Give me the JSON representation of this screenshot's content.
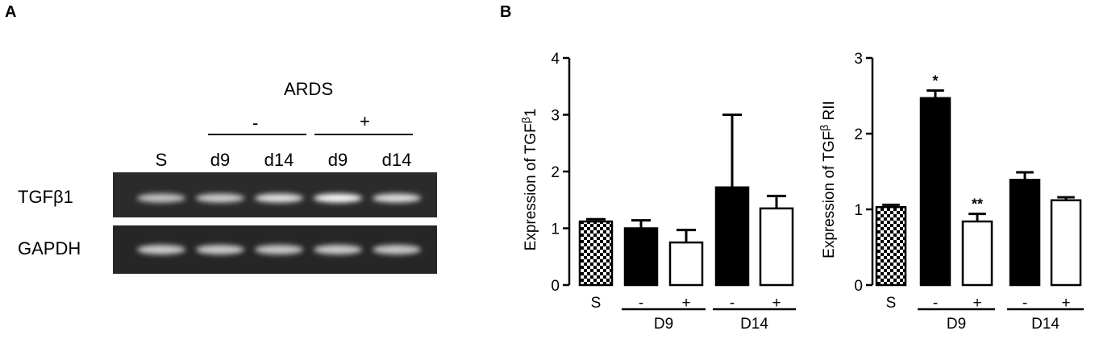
{
  "panel_a": {
    "letter": "A",
    "group_title": "ARDS",
    "minus_label": "-",
    "plus_label": "+",
    "lanes": [
      "S",
      "d9",
      "d14",
      "d9",
      "d14"
    ],
    "rows": [
      "TGFβ1",
      "GAPDH"
    ],
    "band_intensity": {
      "TGFβ1": [
        0.55,
        0.62,
        0.78,
        0.95,
        0.75
      ],
      "GAPDH": [
        0.6,
        0.6,
        0.58,
        0.6,
        0.58
      ]
    }
  },
  "panel_b": {
    "letter": "B"
  },
  "chart_data": [
    {
      "type": "bar",
      "ylabel_main": "Expression of TGF",
      "ylabel_sup": "β",
      "ylabel_tail": "1",
      "ylim": [
        0,
        4
      ],
      "yticks": [
        0,
        1,
        2,
        3,
        4
      ],
      "categories": [
        "S",
        "-",
        "+",
        "-",
        "+"
      ],
      "groups": [
        {
          "label": "D9",
          "categories": [
            1,
            2
          ]
        },
        {
          "label": "D14",
          "categories": [
            3,
            4
          ]
        }
      ],
      "values": [
        1.12,
        1.0,
        0.75,
        1.72,
        1.35
      ],
      "errors": [
        0.04,
        0.14,
        0.22,
        1.28,
        0.22
      ],
      "fills": [
        "checker",
        "#000000",
        "#ffffff",
        "#000000",
        "#ffffff"
      ],
      "annotations": [
        "",
        "",
        "",
        "",
        ""
      ]
    },
    {
      "type": "bar",
      "ylabel_main": "Expression of TGF",
      "ylabel_sup": "β",
      "ylabel_tail": " RII",
      "ylim": [
        0,
        3
      ],
      "yticks": [
        0,
        1,
        2,
        3
      ],
      "categories": [
        "S",
        "-",
        "+",
        "-",
        "+"
      ],
      "groups": [
        {
          "label": "D9",
          "categories": [
            1,
            2
          ]
        },
        {
          "label": "D14",
          "categories": [
            3,
            4
          ]
        }
      ],
      "values": [
        1.03,
        2.47,
        0.84,
        1.39,
        1.12
      ],
      "errors": [
        0.03,
        0.1,
        0.1,
        0.1,
        0.04
      ],
      "fills": [
        "checker",
        "#000000",
        "#ffffff",
        "#000000",
        "#ffffff"
      ],
      "annotations": [
        "",
        "*",
        "**",
        "",
        ""
      ]
    }
  ]
}
